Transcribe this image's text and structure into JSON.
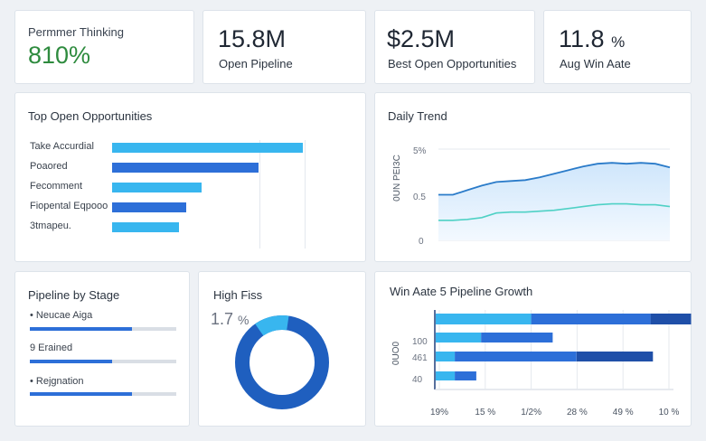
{
  "kpis": [
    {
      "label": "Permmer Thinking",
      "value": "810%",
      "value_color": "#2e8b3e"
    },
    {
      "value": "15.8M",
      "label": "Open Pipeline"
    },
    {
      "value": "$2.5M",
      "label": "Best Open Opportunities"
    },
    {
      "value": "11.8",
      "unit": "%",
      "label": "Aug Win Aate"
    }
  ],
  "top_opportunities": {
    "title": "Top Open Opportunities",
    "items": [
      {
        "label": "Take Accurdial",
        "value": 1.0,
        "color": "#38b6ef"
      },
      {
        "label": "Poaored",
        "value": 0.77,
        "color": "#2d6fd8"
      },
      {
        "label": "Fecomment",
        "value": 0.47,
        "color": "#38b6ef"
      },
      {
        "label": "Fiopental Eqpooo",
        "value": 0.39,
        "color": "#2d6fd8"
      },
      {
        "label": "3tmapeu.",
        "value": 0.35,
        "color": "#38b6ef"
      }
    ]
  },
  "daily_trend": {
    "title": "Daily Trend",
    "y_axis_label": "0UN PEI3C",
    "y_ticks": [
      "5%",
      "0.5",
      "0"
    ]
  },
  "pipeline_by_stage": {
    "title": "Pipeline by Stage",
    "stages": [
      {
        "label": "• Neucae Aiga",
        "fill": 0.7
      },
      {
        "label": "9 Erained",
        "fill": 0.56
      },
      {
        "label": "• Rejgnation",
        "fill": 0.7
      }
    ]
  },
  "high_fiss": {
    "title": "High Fiss",
    "value": "1.7",
    "unit": "%",
    "ring_fraction": 0.12,
    "colors": {
      "main": "#1f5fbf",
      "accent": "#38b6ef"
    }
  },
  "win_rate_growth": {
    "title": "Win Aate 5 Pipeline Growth",
    "y_axis_label": "0UO0",
    "y_ticks": [
      "100",
      "461",
      "40"
    ],
    "x_ticks": [
      "19%",
      "15 %",
      "1/2%",
      "28 %",
      "49 %",
      "10 %"
    ],
    "colors": {
      "light": "#38b6ef",
      "mid": "#2d6fd8",
      "dark": "#1f4fa8"
    }
  },
  "chart_data": [
    {
      "type": "bar",
      "title": "Top Open Opportunities",
      "categories": [
        "Take Accurdial",
        "Poaored",
        "Fecomment",
        "Fiopental Eqpooo",
        "3tmapeu."
      ],
      "values": [
        1.0,
        0.77,
        0.47,
        0.39,
        0.35
      ]
    },
    {
      "type": "area",
      "title": "Daily Trend",
      "ylabel": "0UN PEI3C",
      "y_ticks": [
        "5%",
        "0.5",
        "0"
      ],
      "series": [
        {
          "name": "upper",
          "values": [
            0.5,
            0.5,
            0.55,
            0.6,
            0.64,
            0.65,
            0.66,
            0.69,
            0.73,
            0.77,
            0.81,
            0.84,
            0.85,
            0.84,
            0.85,
            0.84,
            0.8
          ]
        },
        {
          "name": "lower",
          "values": [
            0.22,
            0.22,
            0.23,
            0.25,
            0.3,
            0.31,
            0.31,
            0.32,
            0.33,
            0.35,
            0.37,
            0.39,
            0.4,
            0.4,
            0.39,
            0.39,
            0.37
          ]
        }
      ]
    },
    {
      "type": "bar",
      "title": "Win Aate 5 Pipeline Growth",
      "orientation": "horizontal-stacked",
      "x_ticks": [
        "19%",
        "15 %",
        "1/2%",
        "28 %",
        "49 %",
        "10 %"
      ],
      "rows": [
        {
          "segments": [
            {
              "value": 0.4,
              "color": "light"
            },
            {
              "value": 0.5,
              "color": "mid"
            },
            {
              "value": 0.17,
              "color": "dark"
            }
          ]
        },
        {
          "segments": [
            {
              "value": 0.19,
              "color": "light"
            },
            {
              "value": 0.3,
              "color": "mid"
            }
          ]
        },
        {
          "segments": [
            {
              "value": 0.08,
              "color": "light"
            },
            {
              "value": 0.51,
              "color": "mid"
            },
            {
              "value": 0.32,
              "color": "dark"
            }
          ]
        },
        {
          "segments": [
            {
              "value": 0.08,
              "color": "light"
            },
            {
              "value": 0.09,
              "color": "mid"
            }
          ]
        }
      ]
    },
    {
      "type": "pie",
      "title": "High Fiss",
      "values": [
        0.88,
        0.12
      ]
    }
  ]
}
